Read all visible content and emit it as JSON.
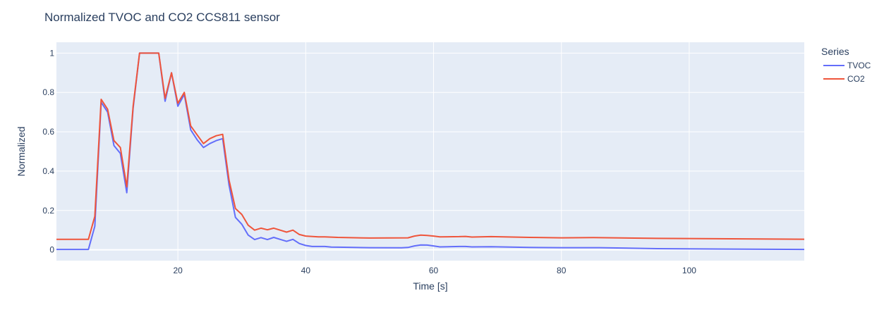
{
  "chart_data": {
    "type": "line",
    "title": "Normalized TVOC and CO2 CCS811 sensor",
    "xlabel": "Time [s]",
    "ylabel": "Normalized",
    "xlim": [
      1,
      118
    ],
    "ylim": [
      -0.055,
      1.055
    ],
    "x_ticks": [
      20,
      40,
      60,
      80,
      100
    ],
    "y_ticks": [
      0,
      0.2,
      0.4,
      0.6,
      0.8,
      1
    ],
    "y_tick_labels": [
      "0",
      "0.2",
      "0.4",
      "0.6",
      "0.8",
      "1"
    ],
    "grid": true,
    "legend_title": "Series",
    "legend_position": "right",
    "colors": {
      "TVOC": "#636efa",
      "CO2": "#ef553b",
      "plot_bg": "#e5ecf6",
      "grid": "#ffffff"
    },
    "series": [
      {
        "name": "TVOC",
        "x": [
          1,
          6,
          7,
          8,
          9,
          10,
          11,
          12,
          13,
          14,
          15,
          16,
          17,
          18,
          19,
          20,
          21,
          22,
          23,
          24,
          25,
          26,
          27,
          28,
          29,
          30,
          31,
          32,
          33,
          34,
          35,
          36,
          37,
          38,
          39,
          40,
          41,
          42,
          43,
          44,
          46,
          50,
          55,
          56,
          57,
          58,
          59,
          60,
          61,
          64,
          65,
          66,
          69,
          75,
          80,
          86,
          95,
          118
        ],
        "y": [
          0.002,
          0.002,
          0.12,
          0.75,
          0.7,
          0.53,
          0.49,
          0.29,
          0.72,
          1.0,
          1.0,
          1.0,
          1.0,
          0.755,
          0.9,
          0.73,
          0.79,
          0.61,
          0.56,
          0.52,
          0.54,
          0.555,
          0.565,
          0.33,
          0.165,
          0.13,
          0.075,
          0.052,
          0.062,
          0.052,
          0.063,
          0.053,
          0.043,
          0.053,
          0.032,
          0.022,
          0.017,
          0.017,
          0.017,
          0.014,
          0.013,
          0.011,
          0.01,
          0.012,
          0.02,
          0.025,
          0.024,
          0.02,
          0.015,
          0.017,
          0.017,
          0.015,
          0.016,
          0.012,
          0.011,
          0.011,
          0.006,
          0.002
        ]
      },
      {
        "name": "CO2",
        "x": [
          1,
          6,
          7,
          8,
          9,
          10,
          11,
          12,
          13,
          14,
          15,
          16,
          17,
          18,
          19,
          20,
          21,
          22,
          23,
          24,
          25,
          26,
          27,
          28,
          29,
          30,
          31,
          32,
          33,
          34,
          35,
          36,
          37,
          38,
          39,
          40,
          42,
          43,
          45,
          50,
          56,
          57,
          58,
          59,
          60,
          61,
          64,
          65,
          66,
          69,
          75,
          80,
          85,
          95,
          118
        ],
        "y": [
          0.053,
          0.053,
          0.17,
          0.765,
          0.715,
          0.555,
          0.52,
          0.32,
          0.73,
          1.0,
          1.0,
          1.0,
          1.0,
          0.77,
          0.9,
          0.745,
          0.8,
          0.63,
          0.585,
          0.54,
          0.565,
          0.58,
          0.587,
          0.355,
          0.21,
          0.18,
          0.125,
          0.1,
          0.11,
          0.102,
          0.11,
          0.1,
          0.09,
          0.1,
          0.078,
          0.07,
          0.066,
          0.066,
          0.063,
          0.06,
          0.061,
          0.07,
          0.075,
          0.073,
          0.07,
          0.066,
          0.067,
          0.068,
          0.065,
          0.067,
          0.063,
          0.061,
          0.062,
          0.058,
          0.054
        ]
      }
    ]
  }
}
